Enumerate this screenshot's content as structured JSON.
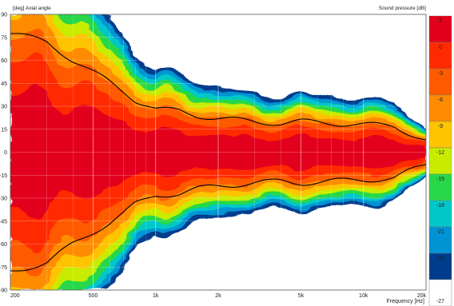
{
  "chart_data": {
    "type": "heatmap",
    "title": "",
    "y_header": "[deg]  Axial angle",
    "colorbar_header": "Sound pressure  [dB]",
    "xlabel": "Frequency  [Hz]",
    "x_scale": "log",
    "xlim": [
      200,
      20000
    ],
    "ylim": [
      -90,
      90
    ],
    "clim": [
      -27,
      3
    ],
    "grid": true,
    "y_ticks": [
      90,
      75,
      60,
      45,
      30,
      15,
      0,
      -15,
      -30,
      -45,
      -60,
      -75,
      -90
    ],
    "x_ticks": [
      {
        "value": 200,
        "label": "200"
      },
      {
        "value": 500,
        "label": "500"
      },
      {
        "value": 1000,
        "label": "1k"
      },
      {
        "value": 2000,
        "label": "2k"
      },
      {
        "value": 5000,
        "label": "5k"
      },
      {
        "value": 10000,
        "label": "10k"
      },
      {
        "value": 20000,
        "label": "20k"
      }
    ],
    "colorbar": [
      {
        "label": "3",
        "color": "#e2001a"
      },
      {
        "label": "0",
        "color": "#ff2a00"
      },
      {
        "label": "-3",
        "color": "#ff5a00"
      },
      {
        "label": "-6",
        "color": "#ff8c00"
      },
      {
        "label": "-9",
        "color": "#ffc400"
      },
      {
        "label": "-12",
        "color": "#c8ec00"
      },
      {
        "label": "-15",
        "color": "#28d84a"
      },
      {
        "label": "-18",
        "color": "#00c8c8"
      },
      {
        "label": "-21",
        "color": "#0094d4"
      },
      {
        "label": "-24",
        "color": "#003c8c"
      },
      {
        "label": "-27",
        "color": "#ffffff"
      }
    ],
    "contour_levels_db": [
      -6
    ],
    "beamwidth_deg": [
      {
        "f": 200,
        "angle": 78
      },
      {
        "f": 300,
        "angle": 72
      },
      {
        "f": 400,
        "angle": 60
      },
      {
        "f": 500,
        "angle": 52
      },
      {
        "f": 600,
        "angle": 46
      },
      {
        "f": 700,
        "angle": 40
      },
      {
        "f": 800,
        "angle": 34
      },
      {
        "f": 1000,
        "angle": 28
      },
      {
        "f": 1300,
        "angle": 27
      },
      {
        "f": 1600,
        "angle": 24
      },
      {
        "f": 2000,
        "angle": 22
      },
      {
        "f": 3000,
        "angle": 20
      },
      {
        "f": 4000,
        "angle": 19
      },
      {
        "f": 5000,
        "angle": 20
      },
      {
        "f": 7000,
        "angle": 19
      },
      {
        "f": 10000,
        "angle": 18
      },
      {
        "f": 14000,
        "angle": 17
      },
      {
        "f": 17000,
        "angle": 12
      },
      {
        "f": 20000,
        "angle": 8
      }
    ]
  }
}
